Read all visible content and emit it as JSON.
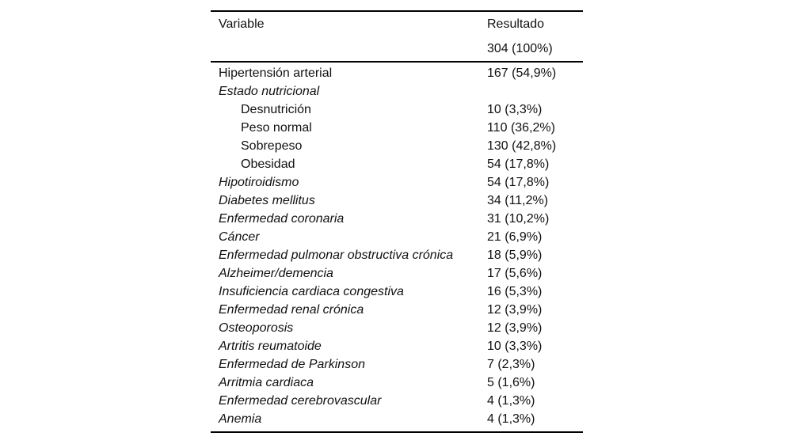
{
  "page": {
    "background_color": "#ffffff",
    "text_color": "#111111",
    "rule_color": "#000000"
  },
  "table": {
    "columns": [
      "Variable",
      "Resultado"
    ],
    "total_row_value": "304 (100%)",
    "rows": [
      {
        "label": "Hipertensión arterial",
        "value": "167 (54,9%)",
        "italic": false,
        "indent": false
      },
      {
        "label": "Estado nutricional",
        "value": "",
        "italic": true,
        "indent": false
      },
      {
        "label": "Desnutrición",
        "value": "10 (3,3%)",
        "italic": false,
        "indent": true
      },
      {
        "label": "Peso normal",
        "value": "110 (36,2%)",
        "italic": false,
        "indent": true
      },
      {
        "label": "Sobrepeso",
        "value": "130 (42,8%)",
        "italic": false,
        "indent": true
      },
      {
        "label": "Obesidad",
        "value": "54 (17,8%)",
        "italic": false,
        "indent": true
      },
      {
        "label": "Hipotiroidismo",
        "value": "54 (17,8%)",
        "italic": true,
        "indent": false
      },
      {
        "label": "Diabetes mellitus",
        "value": "34 (11,2%)",
        "italic": true,
        "indent": false
      },
      {
        "label": "Enfermedad coronaria",
        "value": "31 (10,2%)",
        "italic": true,
        "indent": false
      },
      {
        "label": "Cáncer",
        "value": "21 (6,9%)",
        "italic": true,
        "indent": false
      },
      {
        "label": "Enfermedad pulmonar obstructiva crónica",
        "value": "18 (5,9%)",
        "italic": true,
        "indent": false
      },
      {
        "label": "Alzheimer/demencia",
        "value": "17 (5,6%)",
        "italic": true,
        "indent": false
      },
      {
        "label": "Insuficiencia cardiaca congestiva",
        "value": "16 (5,3%)",
        "italic": true,
        "indent": false
      },
      {
        "label": "Enfermedad renal crónica",
        "value": "12 (3,9%)",
        "italic": true,
        "indent": false
      },
      {
        "label": "Osteoporosis",
        "value": "12 (3,9%)",
        "italic": true,
        "indent": false
      },
      {
        "label": "Artritis reumatoide",
        "value": "10 (3,3%)",
        "italic": true,
        "indent": false
      },
      {
        "label": "Enfermedad de Parkinson",
        "value": "7 (2,3%)",
        "italic": true,
        "indent": false
      },
      {
        "label": "Arritmia cardiaca",
        "value": "5 (1,6%)",
        "italic": true,
        "indent": false
      },
      {
        "label": "Enfermedad cerebrovascular",
        "value": "4 (1,3%)",
        "italic": true,
        "indent": false
      },
      {
        "label": "Anemia",
        "value": "4 (1,3%)",
        "italic": true,
        "indent": false
      }
    ]
  }
}
